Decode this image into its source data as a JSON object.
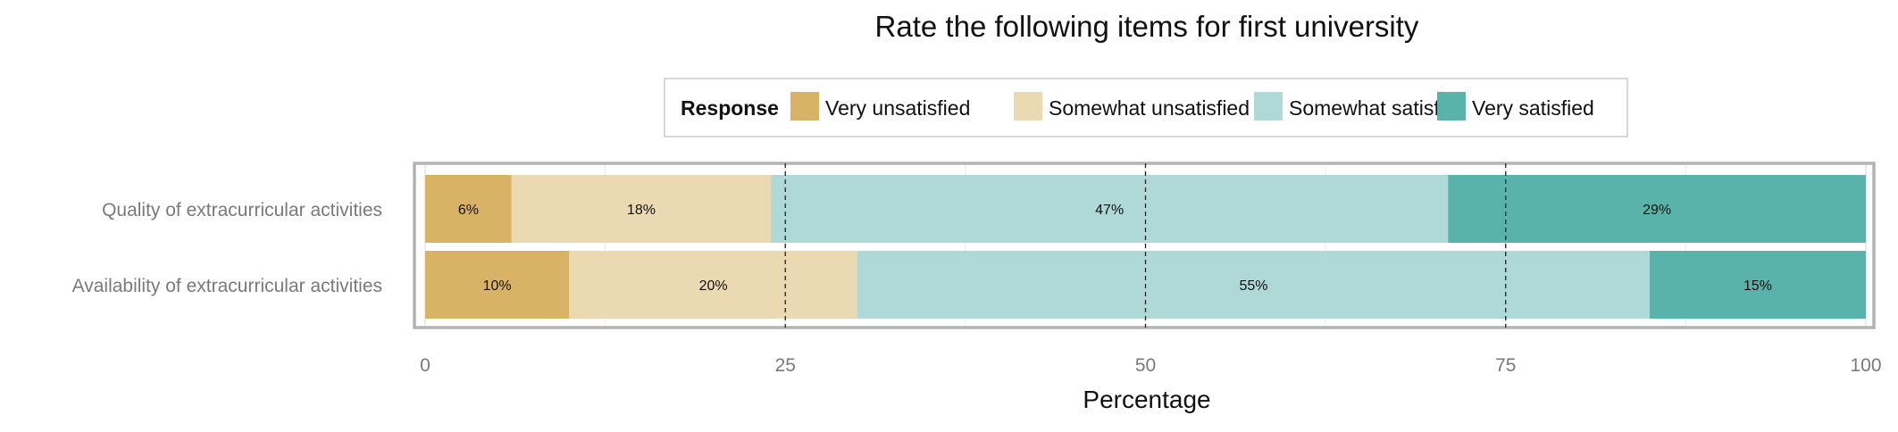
{
  "chart_data": {
    "type": "bar",
    "orientation": "horizontal",
    "stacked": true,
    "title": "Rate the following items for first university",
    "xlabel": "Percentage",
    "ylabel": "",
    "xlim": [
      0,
      100
    ],
    "xticks": [
      0,
      25,
      50,
      75,
      100
    ],
    "reference_lines": [
      25,
      50,
      75
    ],
    "grid": true,
    "legend": {
      "title": "Response",
      "position": "top"
    },
    "categories": [
      "Quality of extracurricular activities",
      "Availability of extracurricular activities"
    ],
    "series": [
      {
        "name": "Very unsatisfied",
        "color": "#D9B365",
        "values": [
          6,
          10
        ],
        "labels": [
          "6%",
          "10%"
        ]
      },
      {
        "name": "Somewhat unsatisfied",
        "color": "#EBD9B2",
        "values": [
          18,
          20
        ],
        "labels": [
          "18%",
          "20%"
        ]
      },
      {
        "name": "Somewhat satisfied",
        "color": "#AED9D6",
        "values": [
          47,
          55
        ],
        "labels": [
          "47%",
          "55%"
        ]
      },
      {
        "name": "Very satisfied",
        "color": "#5AB3AA",
        "values": [
          29,
          15
        ],
        "labels": [
          "29%",
          "15%"
        ]
      }
    ]
  }
}
